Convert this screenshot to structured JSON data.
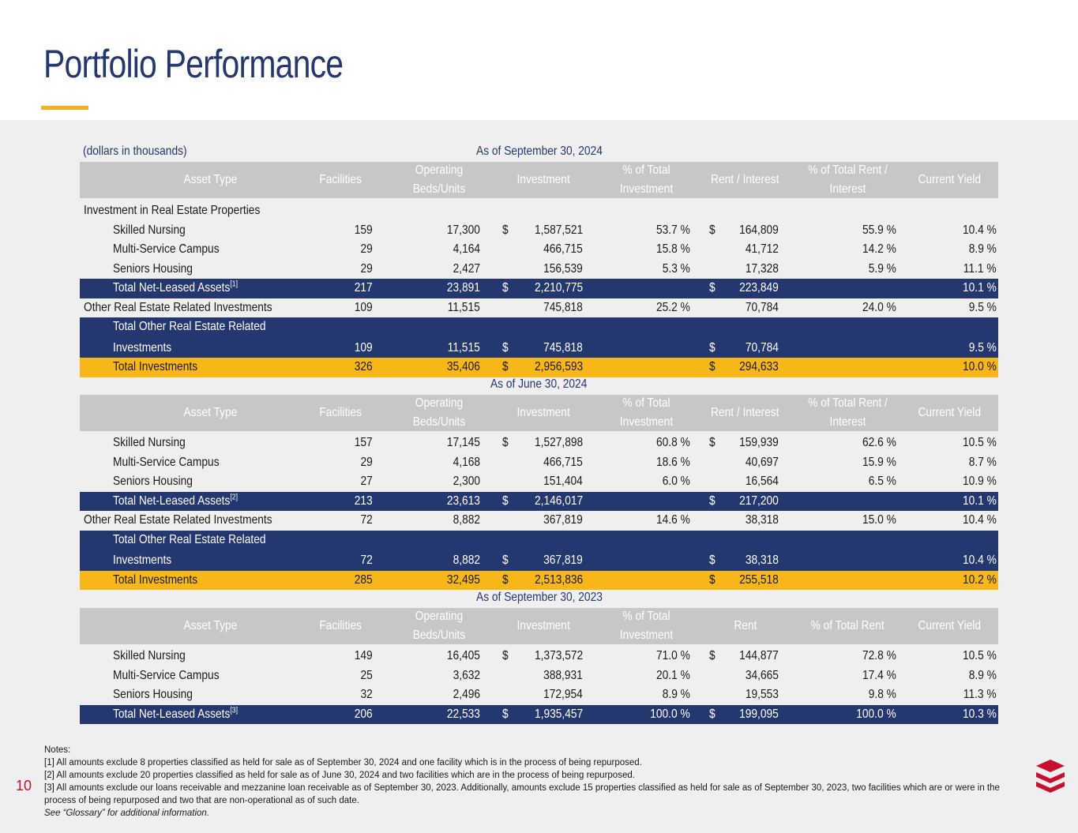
{
  "title": "Portfolio Performance",
  "units_note": "(dollars in thousands)",
  "sections": [
    {
      "heading": "As of September 30, 2024",
      "columns": [
        "Asset Type",
        "Facilities",
        "Operating Beds/Units",
        "Investment",
        "% of Total Investment",
        "Rent / Interest",
        "% of Total Rent / Interest",
        "Current Yield"
      ],
      "rows": [
        {
          "style": "plain",
          "indent": false,
          "label": "Investment in Real Estate Properties",
          "sup": "",
          "facilities": "",
          "beds": "",
          "inv_dollar": "",
          "investment": "",
          "pct_inv": "",
          "rent_dollar": "",
          "rent": "",
          "pct_rent": "",
          "yield": ""
        },
        {
          "style": "plain",
          "indent": true,
          "label": "Skilled Nursing",
          "sup": "",
          "facilities": "159",
          "beds": "17,300",
          "inv_dollar": "$",
          "investment": "1,587,521",
          "pct_inv": "53.7 %",
          "rent_dollar": "$",
          "rent": "164,809",
          "pct_rent": "55.9 %",
          "yield": "10.4 %"
        },
        {
          "style": "plain",
          "indent": true,
          "label": "Multi-Service Campus",
          "sup": "",
          "facilities": "29",
          "beds": "4,164",
          "inv_dollar": "",
          "investment": "466,715",
          "pct_inv": "15.8 %",
          "rent_dollar": "",
          "rent": "41,712",
          "pct_rent": "14.2 %",
          "yield": "8.9 %"
        },
        {
          "style": "plain",
          "indent": true,
          "label": "Seniors Housing",
          "sup": "",
          "facilities": "29",
          "beds": "2,427",
          "inv_dollar": "",
          "investment": "156,539",
          "pct_inv": "5.3 %",
          "rent_dollar": "",
          "rent": "17,328",
          "pct_rent": "5.9 %",
          "yield": "11.1 %"
        },
        {
          "style": "blue",
          "indent": true,
          "label": "Total Net-Leased Assets",
          "sup": "[1]",
          "facilities": "217",
          "beds": "23,891",
          "inv_dollar": "$",
          "investment": "2,210,775",
          "pct_inv": "",
          "rent_dollar": "$",
          "rent": "223,849",
          "pct_rent": "",
          "yield": "10.1 %"
        },
        {
          "style": "plain",
          "indent": false,
          "label": "Other Real Estate Related Investments",
          "sup": "",
          "facilities": "109",
          "beds": "11,515",
          "inv_dollar": "",
          "investment": "745,818",
          "pct_inv": "25.2 %",
          "rent_dollar": "",
          "rent": "70,784",
          "pct_rent": "24.0 %",
          "yield": "9.5 %"
        },
        {
          "style": "blue2",
          "indent": true,
          "label": "Total Other Real Estate Related",
          "label2": "Investments",
          "sup": "",
          "facilities": "109",
          "beds": "11,515",
          "inv_dollar": "$",
          "investment": "745,818",
          "pct_inv": "",
          "rent_dollar": "$",
          "rent": "70,784",
          "pct_rent": "",
          "yield": "9.5 %"
        },
        {
          "style": "gold",
          "indent": true,
          "label": "Total Investments",
          "sup": "",
          "facilities": "326",
          "beds": "35,406",
          "inv_dollar": "$",
          "investment": "2,956,593",
          "pct_inv": "",
          "rent_dollar": "$",
          "rent": "294,633",
          "pct_rent": "",
          "yield": "10.0 %"
        }
      ]
    },
    {
      "heading": "As of June 30, 2024",
      "columns": [
        "Asset Type",
        "Facilities",
        "Operating Beds/Units",
        "Investment",
        "% of Total Investment",
        "Rent / Interest",
        "% of Total Rent / Interest",
        "Current Yield"
      ],
      "rows": [
        {
          "style": "plain",
          "indent": true,
          "label": "Skilled Nursing",
          "sup": "",
          "facilities": "157",
          "beds": "17,145",
          "inv_dollar": "$",
          "investment": "1,527,898",
          "pct_inv": "60.8 %",
          "rent_dollar": "$",
          "rent": "159,939",
          "pct_rent": "62.6 %",
          "yield": "10.5 %"
        },
        {
          "style": "plain",
          "indent": true,
          "label": "Multi-Service Campus",
          "sup": "",
          "facilities": "29",
          "beds": "4,168",
          "inv_dollar": "",
          "investment": "466,715",
          "pct_inv": "18.6 %",
          "rent_dollar": "",
          "rent": "40,697",
          "pct_rent": "15.9 %",
          "yield": "8.7 %"
        },
        {
          "style": "plain",
          "indent": true,
          "label": "Seniors Housing",
          "sup": "",
          "facilities": "27",
          "beds": "2,300",
          "inv_dollar": "",
          "investment": "151,404",
          "pct_inv": "6.0 %",
          "rent_dollar": "",
          "rent": "16,564",
          "pct_rent": "6.5 %",
          "yield": "10.9 %"
        },
        {
          "style": "blue",
          "indent": true,
          "label": "Total Net-Leased Assets",
          "sup": "[2]",
          "facilities": "213",
          "beds": "23,613",
          "inv_dollar": "$",
          "investment": "2,146,017",
          "pct_inv": "",
          "rent_dollar": "$",
          "rent": "217,200",
          "pct_rent": "",
          "yield": "10.1 %"
        },
        {
          "style": "plain",
          "indent": false,
          "label": "Other Real Estate Related Investments",
          "sup": "",
          "facilities": "72",
          "beds": "8,882",
          "inv_dollar": "",
          "investment": "367,819",
          "pct_inv": "14.6 %",
          "rent_dollar": "",
          "rent": "38,318",
          "pct_rent": "15.0 %",
          "yield": "10.4 %"
        },
        {
          "style": "blue2",
          "indent": true,
          "label": "Total Other Real Estate Related",
          "label2": "Investments",
          "sup": "",
          "facilities": "72",
          "beds": "8,882",
          "inv_dollar": "$",
          "investment": "367,819",
          "pct_inv": "",
          "rent_dollar": "$",
          "rent": "38,318",
          "pct_rent": "",
          "yield": "10.4 %"
        },
        {
          "style": "gold",
          "indent": true,
          "label": "Total Investments",
          "sup": "",
          "facilities": "285",
          "beds": "32,495",
          "inv_dollar": "$",
          "investment": "2,513,836",
          "pct_inv": "",
          "rent_dollar": "$",
          "rent": "255,518",
          "pct_rent": "",
          "yield": "10.2 %"
        }
      ]
    },
    {
      "heading": "As of September 30, 2023",
      "columns": [
        "Asset Type",
        "Facilities",
        "Operating Beds/Units",
        "Investment",
        "% of Total Investment",
        "Rent",
        "% of Total Rent",
        "Current Yield"
      ],
      "rows": [
        {
          "style": "plain",
          "indent": true,
          "label": "Skilled Nursing",
          "sup": "",
          "facilities": "149",
          "beds": "16,405",
          "inv_dollar": "$",
          "investment": "1,373,572",
          "pct_inv": "71.0 %",
          "rent_dollar": "$",
          "rent": "144,877",
          "pct_rent": "72.8 %",
          "yield": "10.5 %"
        },
        {
          "style": "plain",
          "indent": true,
          "label": "Multi-Service Campus",
          "sup": "",
          "facilities": "25",
          "beds": "3,632",
          "inv_dollar": "",
          "investment": "388,931",
          "pct_inv": "20.1 %",
          "rent_dollar": "",
          "rent": "34,665",
          "pct_rent": "17.4 %",
          "yield": "8.9 %"
        },
        {
          "style": "plain",
          "indent": true,
          "label": "Seniors Housing",
          "sup": "",
          "facilities": "32",
          "beds": "2,496",
          "inv_dollar": "",
          "investment": "172,954",
          "pct_inv": "8.9 %",
          "rent_dollar": "",
          "rent": "19,553",
          "pct_rent": "9.8 %",
          "yield": "11.3 %"
        },
        {
          "style": "blue",
          "indent": true,
          "label": "Total Net-Leased Assets",
          "sup": "[3]",
          "facilities": "206",
          "beds": "22,533",
          "inv_dollar": "$",
          "investment": "1,935,457",
          "pct_inv": "100.0 %",
          "rent_dollar": "$",
          "rent": "199,095",
          "pct_rent": "100.0 %",
          "yield": "10.3 %"
        }
      ]
    }
  ],
  "notes": {
    "heading": "Notes:",
    "lines": [
      "[1] All amounts exclude 8 properties classified as held for sale as of September 30, 2024 and one facility which is in the process of being repurposed.",
      "[2] All amounts exclude 20 properties classified as held for sale as of June 30, 2024 and two facilities which are in the process of being repurposed.",
      "[3] All amounts exclude our loans receivable and mezzanine loan receivable as of September 30, 2023. Additionally, amounts exclude 15 properties classified as held for sale as of September 30, 2023, two facilities which are or were in the process of being repurposed and two that are non-operational as of such date."
    ],
    "glossary": "See “Glossary” for additional information."
  },
  "page_number": "10",
  "colors": {
    "navy": "#24376e",
    "gold": "#f7b719",
    "header_gray": "#c7c7c7",
    "brand_red": "#c8102e"
  },
  "logo_icon": "stacked-chevrons-logo-icon"
}
